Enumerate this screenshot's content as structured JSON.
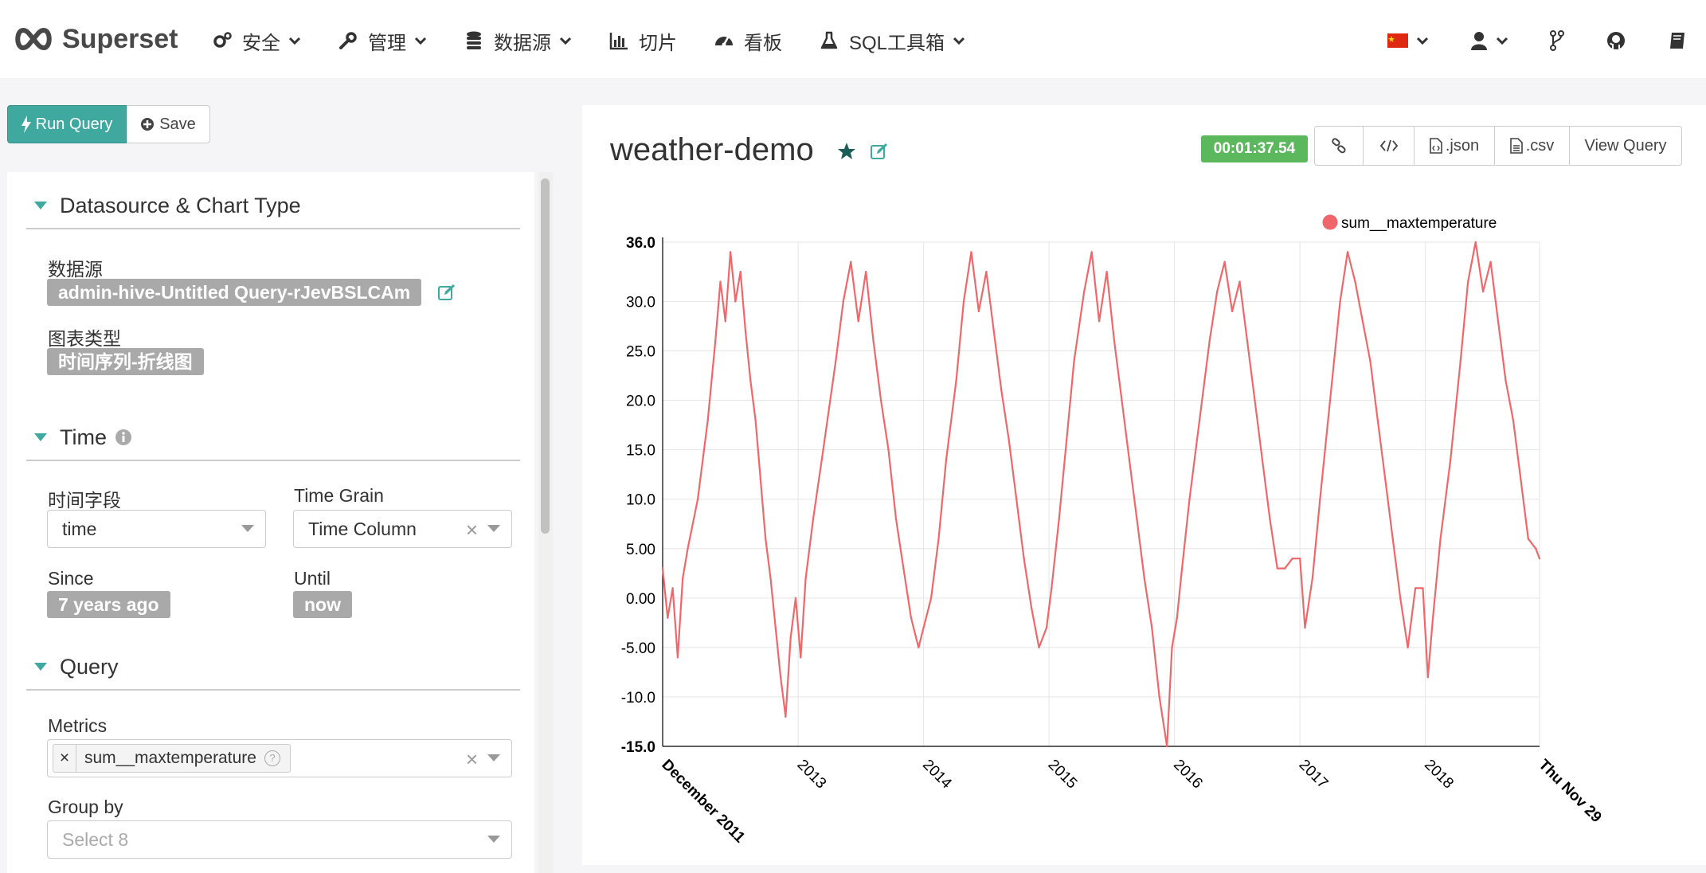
{
  "brand": {
    "name": "Superset"
  },
  "nav": {
    "items": [
      {
        "label": "安全",
        "icon": "gears-icon",
        "dropdown": true
      },
      {
        "label": "管理",
        "icon": "wrench-icon",
        "dropdown": true
      },
      {
        "label": "数据源",
        "icon": "database-icon",
        "dropdown": true
      },
      {
        "label": "切片",
        "icon": "bar-chart-icon",
        "dropdown": false
      },
      {
        "label": "看板",
        "icon": "dashboard-icon",
        "dropdown": false
      },
      {
        "label": "SQL工具箱",
        "icon": "flask-icon",
        "dropdown": true
      }
    ],
    "right": [
      "china-flag-icon",
      "user-icon",
      "code-fork-icon",
      "github-icon",
      "book-icon"
    ]
  },
  "toolbar": {
    "run_label": "Run Query",
    "save_label": "Save"
  },
  "sections": {
    "datasource": {
      "title": "Datasource & Chart Type",
      "datasource_label": "数据源",
      "datasource_value": "admin-hive-Untitled Query-rJevBSLCAm",
      "viz_label": "图表类型",
      "viz_value": "时间序列-折线图"
    },
    "time": {
      "title": "Time",
      "time_field_label": "时间字段",
      "time_field_value": "time",
      "grain_label": "Time Grain",
      "grain_value": "Time Column",
      "since_label": "Since",
      "since_value": "7 years ago",
      "until_label": "Until",
      "until_value": "now"
    },
    "query": {
      "title": "Query",
      "metrics_label": "Metrics",
      "metric_chip": "sum__maxtemperature",
      "groupby_label": "Group by",
      "groupby_placeholder": "Select 8"
    }
  },
  "chart_header": {
    "title": "weather-demo",
    "timer": "00:01:37.54",
    "json_label": ".json",
    "csv_label": ".csv",
    "view_query_label": "View Query"
  },
  "colors": {
    "accent": "#3fa9a0",
    "series": "#f0676b",
    "timer": "#5cb85c"
  },
  "chart_data": {
    "type": "line",
    "legend": "top-right",
    "grid": true,
    "ylim": [
      -15,
      36
    ],
    "yticks": [
      "36.0",
      "30.0",
      "25.0",
      "20.0",
      "15.0",
      "10.0",
      "5.00",
      "0.00",
      "-5.00",
      "-10.0",
      "-15.0"
    ],
    "ytick_values": [
      36,
      30,
      25,
      20,
      15,
      10,
      5,
      0,
      -5,
      -10,
      -15
    ],
    "xticks": [
      "December 2011",
      "2013",
      "2014",
      "2015",
      "2016",
      "2017",
      "2018",
      "Thu Nov 29"
    ],
    "xtick_values": [
      2011.92,
      2013.0,
      2014.0,
      2015.0,
      2016.0,
      2017.0,
      2018.0,
      2018.91
    ],
    "series": [
      {
        "name": "sum__maxtemperature",
        "color": "#f0676b",
        "x": [
          2011.92,
          2011.96,
          2012.0,
          2012.04,
          2012.08,
          2012.12,
          2012.2,
          2012.28,
          2012.34,
          2012.38,
          2012.42,
          2012.46,
          2012.5,
          2012.54,
          2012.58,
          2012.62,
          2012.66,
          2012.7,
          2012.74,
          2012.78,
          2012.82,
          2012.86,
          2012.9,
          2012.94,
          2012.98,
          2013.02,
          2013.06,
          2013.12,
          2013.2,
          2013.3,
          2013.36,
          2013.42,
          2013.48,
          2013.54,
          2013.6,
          2013.66,
          2013.72,
          2013.78,
          2013.84,
          2013.9,
          2013.96,
          2014.0,
          2014.06,
          2014.12,
          2014.18,
          2014.26,
          2014.32,
          2014.38,
          2014.44,
          2014.5,
          2014.56,
          2014.62,
          2014.68,
          2014.74,
          2014.8,
          2014.86,
          2014.92,
          2014.98,
          2015.02,
          2015.08,
          2015.14,
          2015.2,
          2015.28,
          2015.34,
          2015.4,
          2015.46,
          2015.52,
          2015.58,
          2015.64,
          2015.7,
          2015.76,
          2015.82,
          2015.88,
          2015.94,
          2015.98,
          2016.02,
          2016.06,
          2016.12,
          2016.2,
          2016.28,
          2016.34,
          2016.4,
          2016.46,
          2016.52,
          2016.58,
          2016.64,
          2016.7,
          2016.76,
          2016.82,
          2016.88,
          2016.94,
          2017.0,
          2017.04,
          2017.1,
          2017.16,
          2017.24,
          2017.32,
          2017.38,
          2017.44,
          2017.5,
          2017.56,
          2017.62,
          2017.68,
          2017.74,
          2017.8,
          2017.86,
          2017.92,
          2017.98,
          2018.02,
          2018.06,
          2018.12,
          2018.2,
          2018.28,
          2018.34,
          2018.4,
          2018.46,
          2018.52,
          2018.58,
          2018.64,
          2018.7,
          2018.76,
          2018.82,
          2018.88,
          2018.91
        ],
        "y": [
          3,
          -2,
          1,
          -6,
          2,
          5,
          10,
          18,
          26,
          32,
          28,
          35,
          30,
          33,
          27,
          22,
          18,
          12,
          6,
          2,
          -3,
          -8,
          -12,
          -4,
          0,
          -6,
          2,
          8,
          15,
          24,
          30,
          34,
          28,
          33,
          26,
          20,
          15,
          8,
          3,
          -2,
          -5,
          -3,
          0,
          6,
          14,
          22,
          30,
          35,
          29,
          33,
          27,
          21,
          16,
          10,
          4,
          -1,
          -5,
          -3,
          1,
          8,
          16,
          24,
          31,
          35,
          28,
          33,
          26,
          20,
          14,
          8,
          2,
          -3,
          -10,
          -15,
          -5,
          -2,
          3,
          10,
          18,
          26,
          31,
          34,
          29,
          32,
          26,
          20,
          14,
          8,
          3,
          3,
          4,
          4,
          -3,
          2,
          10,
          20,
          30,
          35,
          32,
          28,
          24,
          18,
          12,
          6,
          0,
          -5,
          1,
          1,
          -8,
          -2,
          6,
          14,
          24,
          32,
          36,
          31,
          34,
          28,
          22,
          18,
          12,
          6,
          5,
          4
        ]
      }
    ]
  }
}
